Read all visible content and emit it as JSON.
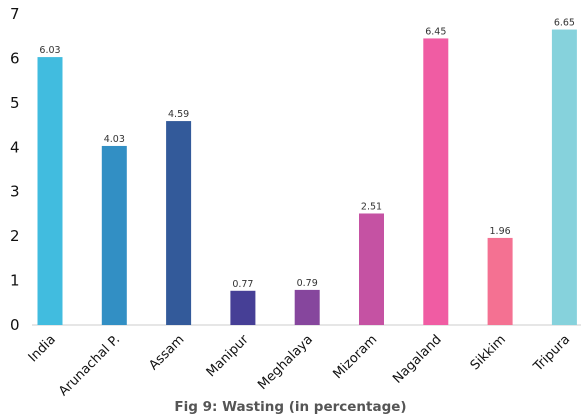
{
  "chart_data": {
    "type": "bar",
    "title": "",
    "xlabel": "",
    "ylabel": "",
    "categories": [
      "India",
      "Arunachal P.",
      "Assam",
      "Manipur",
      "Meghalaya",
      "Mizoram",
      "Nagaland",
      "Sikkim",
      "Tripura"
    ],
    "values": [
      6.03,
      4.03,
      4.59,
      0.77,
      0.79,
      2.51,
      6.45,
      1.96,
      6.65
    ],
    "data_labels": [
      "6.03",
      "4.03",
      "4.59",
      "0.77",
      "0.79",
      "2.51",
      "6.45",
      "1.96",
      "6.65"
    ],
    "colors": [
      "#41BCDF",
      "#328FC4",
      "#335A9A",
      "#463F96",
      "#86469D",
      "#C552A3",
      "#F05CA3",
      "#F47192",
      "#86D2DC"
    ],
    "ylim": [
      0,
      7
    ],
    "yticks": [
      "0",
      "1",
      "2",
      "3",
      "4",
      "5",
      "6",
      "7"
    ],
    "grid": false,
    "legend": "none"
  },
  "caption": "Fig 9: Wasting (in percentage)"
}
